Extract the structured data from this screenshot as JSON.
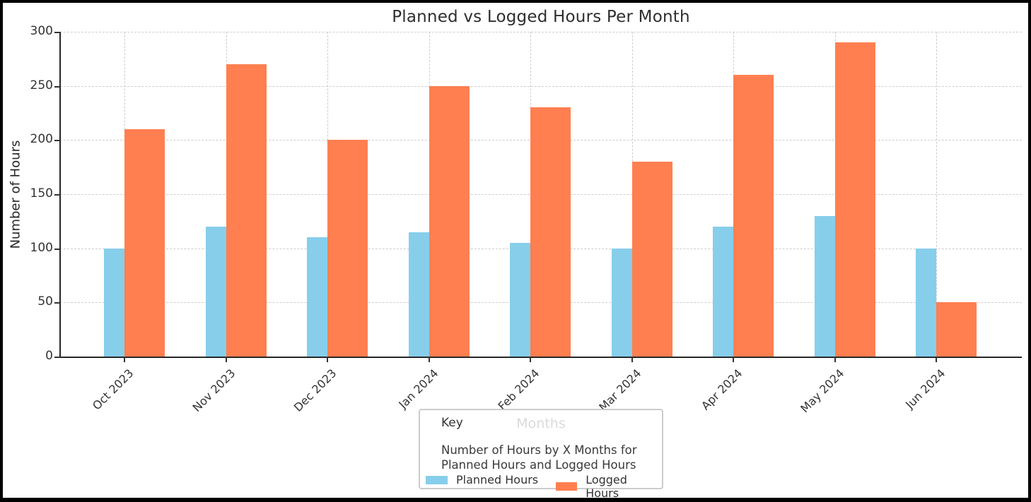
{
  "chart_data": {
    "type": "bar",
    "title": "Planned vs Logged Hours Per Month",
    "xlabel": "Months",
    "ylabel": "Number of Hours",
    "categories": [
      "Oct 2023",
      "Nov 2023",
      "Dec 2023",
      "Jan 2024",
      "Feb 2024",
      "Mar 2024",
      "Apr 2024",
      "May 2024",
      "Jun 2024"
    ],
    "series": [
      {
        "name": "Planned Hours",
        "color": "#87CEEB",
        "values": [
          100,
          120,
          110,
          115,
          105,
          100,
          120,
          130,
          100
        ]
      },
      {
        "name": "Logged Hours",
        "color": "#FF7F50",
        "values": [
          210,
          270,
          200,
          250,
          230,
          180,
          260,
          290,
          50
        ]
      }
    ],
    "ylim": [
      0,
      300
    ],
    "ytick_step": 50,
    "yticks": [
      0,
      50,
      100,
      150,
      200,
      250,
      300
    ],
    "grid": "dashed",
    "legend_position": "bottom-center"
  },
  "legend": {
    "key_label": "Key",
    "description_lines": [
      "Number of Hours by X Months for",
      "Planned Hours and Logged Hours"
    ]
  },
  "colors": {
    "planned": "#87CEEB",
    "logged": "#FF7F50",
    "grid": "#cdcdcd",
    "spine": "#262626",
    "frame_border": "#000000",
    "ghost_label": "#dadada"
  }
}
